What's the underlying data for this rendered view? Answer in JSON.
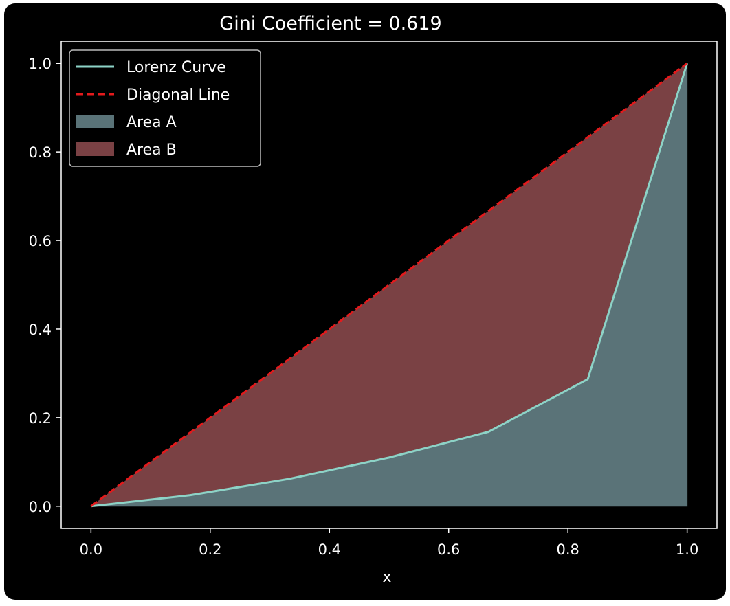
{
  "chart_data": {
    "type": "area",
    "title": "Gini Coefficient = 0.619",
    "xlabel": "x",
    "ylabel": "",
    "xlim": [
      -0.05,
      1.05
    ],
    "ylim": [
      -0.05,
      1.05
    ],
    "xticks": [
      0.0,
      0.2,
      0.4,
      0.6,
      0.8,
      1.0
    ],
    "xtick_labels": [
      "0.0",
      "0.2",
      "0.4",
      "0.6",
      "0.8",
      "1.0"
    ],
    "yticks": [
      0.0,
      0.2,
      0.4,
      0.6,
      0.8,
      1.0
    ],
    "ytick_labels": [
      "0.0",
      "0.2",
      "0.4",
      "0.6",
      "0.8",
      "1.0"
    ],
    "grid": false,
    "legend_position": "upper-left",
    "legend": [
      {
        "key": "lorenz",
        "label": "Lorenz Curve"
      },
      {
        "key": "diagonal",
        "label": "Diagonal Line"
      },
      {
        "key": "area_a",
        "label": "Area A"
      },
      {
        "key": "area_b",
        "label": "Area B"
      }
    ],
    "series": [
      {
        "name": "Lorenz Curve",
        "x": [
          0.0,
          0.1667,
          0.3333,
          0.5,
          0.6667,
          0.8333,
          1.0
        ],
        "y": [
          0.0,
          0.025,
          0.062,
          0.11,
          0.168,
          0.287,
          1.0
        ]
      },
      {
        "name": "Diagonal Line",
        "x": [
          0.0,
          1.0
        ],
        "y": [
          0.0,
          1.0
        ]
      }
    ],
    "colors": {
      "background": "#000000",
      "lorenz": "#8dd3c7",
      "diagonal": "#e31a1c",
      "area_a": "#5a7378",
      "area_b": "#7a4144",
      "text": "#ffffff"
    }
  }
}
